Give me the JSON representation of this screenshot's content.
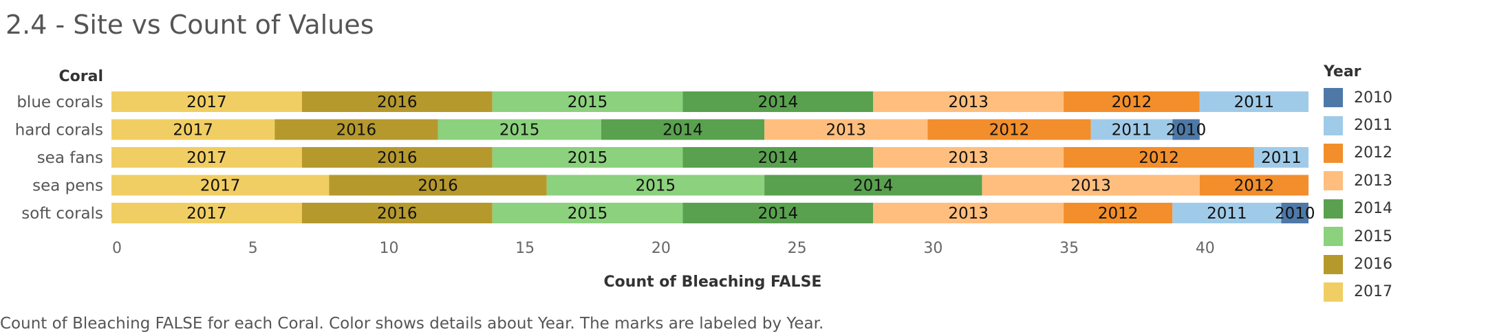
{
  "title": "2.4 - Site vs Count of Values",
  "caption": "Count of Bleaching FALSE for each Coral.  Color shows details about Year.  The marks are labeled by Year.",
  "legend": {
    "title": "Year",
    "items": [
      {
        "label": "2010",
        "color": "#4e79a7"
      },
      {
        "label": "2011",
        "color": "#a0cbe8"
      },
      {
        "label": "2012",
        "color": "#f28e2b"
      },
      {
        "label": "2013",
        "color": "#ffbe7d"
      },
      {
        "label": "2014",
        "color": "#59a14f"
      },
      {
        "label": "2015",
        "color": "#8cd17d"
      },
      {
        "label": "2016",
        "color": "#b6992d"
      },
      {
        "label": "2017",
        "color": "#f1ce63"
      }
    ]
  },
  "chart_data": {
    "type": "bar",
    "orientation": "horizontal",
    "stacked": true,
    "title": "2.4 - Site vs Count of Values",
    "ylabel": "Coral",
    "xlabel": "Count of Bleaching FALSE",
    "xlim": [
      0,
      44
    ],
    "xticks": [
      0,
      5,
      10,
      15,
      20,
      25,
      30,
      35,
      40
    ],
    "categories": [
      "blue corals",
      "hard corals",
      "sea fans",
      "sea pens",
      "soft corals"
    ],
    "series": [
      {
        "name": "2017",
        "color": "#f1ce63",
        "values": [
          7,
          6,
          7,
          8,
          7
        ]
      },
      {
        "name": "2016",
        "color": "#b6992d",
        "values": [
          7,
          6,
          7,
          8,
          7
        ]
      },
      {
        "name": "2015",
        "color": "#8cd17d",
        "values": [
          7,
          6,
          7,
          8,
          7
        ]
      },
      {
        "name": "2014",
        "color": "#59a14f",
        "values": [
          7,
          6,
          7,
          8,
          7
        ]
      },
      {
        "name": "2013",
        "color": "#ffbe7d",
        "values": [
          7,
          6,
          7,
          8,
          7
        ]
      },
      {
        "name": "2012",
        "color": "#f28e2b",
        "values": [
          5,
          6,
          7,
          4,
          4
        ]
      },
      {
        "name": "2011",
        "color": "#a0cbe8",
        "values": [
          4,
          3,
          2,
          0,
          4
        ]
      },
      {
        "name": "2010",
        "color": "#4e79a7",
        "values": [
          0,
          1,
          0,
          0,
          1
        ]
      }
    ],
    "grid": false,
    "legend_position": "right"
  }
}
